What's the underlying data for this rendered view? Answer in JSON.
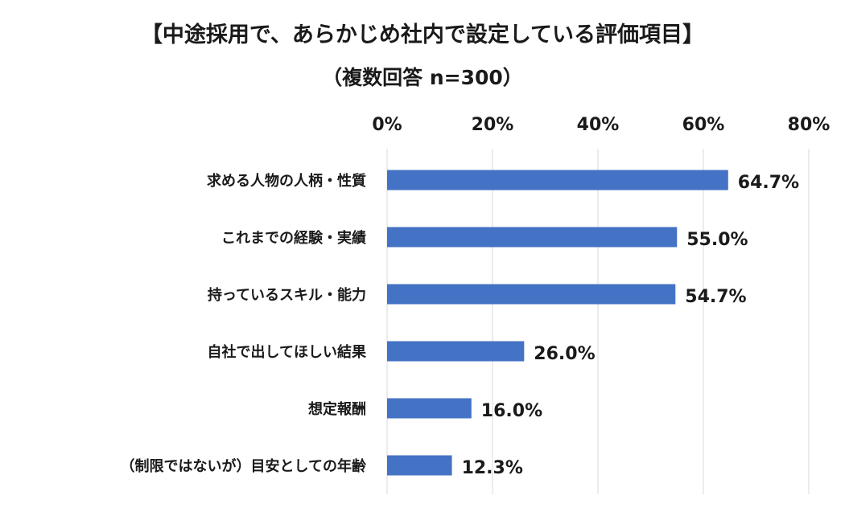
{
  "chart_data": {
    "type": "bar",
    "orientation": "horizontal",
    "title": "【中途採用で、あらかじめ社内で設定している評価項目】",
    "subtitle": "（複数回答 n=300）",
    "categories": [
      "求める人物の人柄・性質",
      "これまでの経験・実績",
      "持っているスキル・能力",
      "自社で出してほしい結果",
      "想定報酬",
      "（制限ではないが）目安としての年齢"
    ],
    "values": [
      64.7,
      55.0,
      54.7,
      26.0,
      16.0,
      12.3
    ],
    "value_labels": [
      "64.7%",
      "55.0%",
      "54.7%",
      "26.0%",
      "16.0%",
      "12.3%"
    ],
    "xlim": [
      0,
      80
    ],
    "ticks": [
      0,
      20,
      40,
      60,
      80
    ],
    "tick_labels": [
      "0%",
      "20%",
      "40%",
      "60%",
      "80%"
    ],
    "axis_position": "top",
    "grid": true,
    "legend": "none",
    "bar_color": "#4472c4"
  }
}
